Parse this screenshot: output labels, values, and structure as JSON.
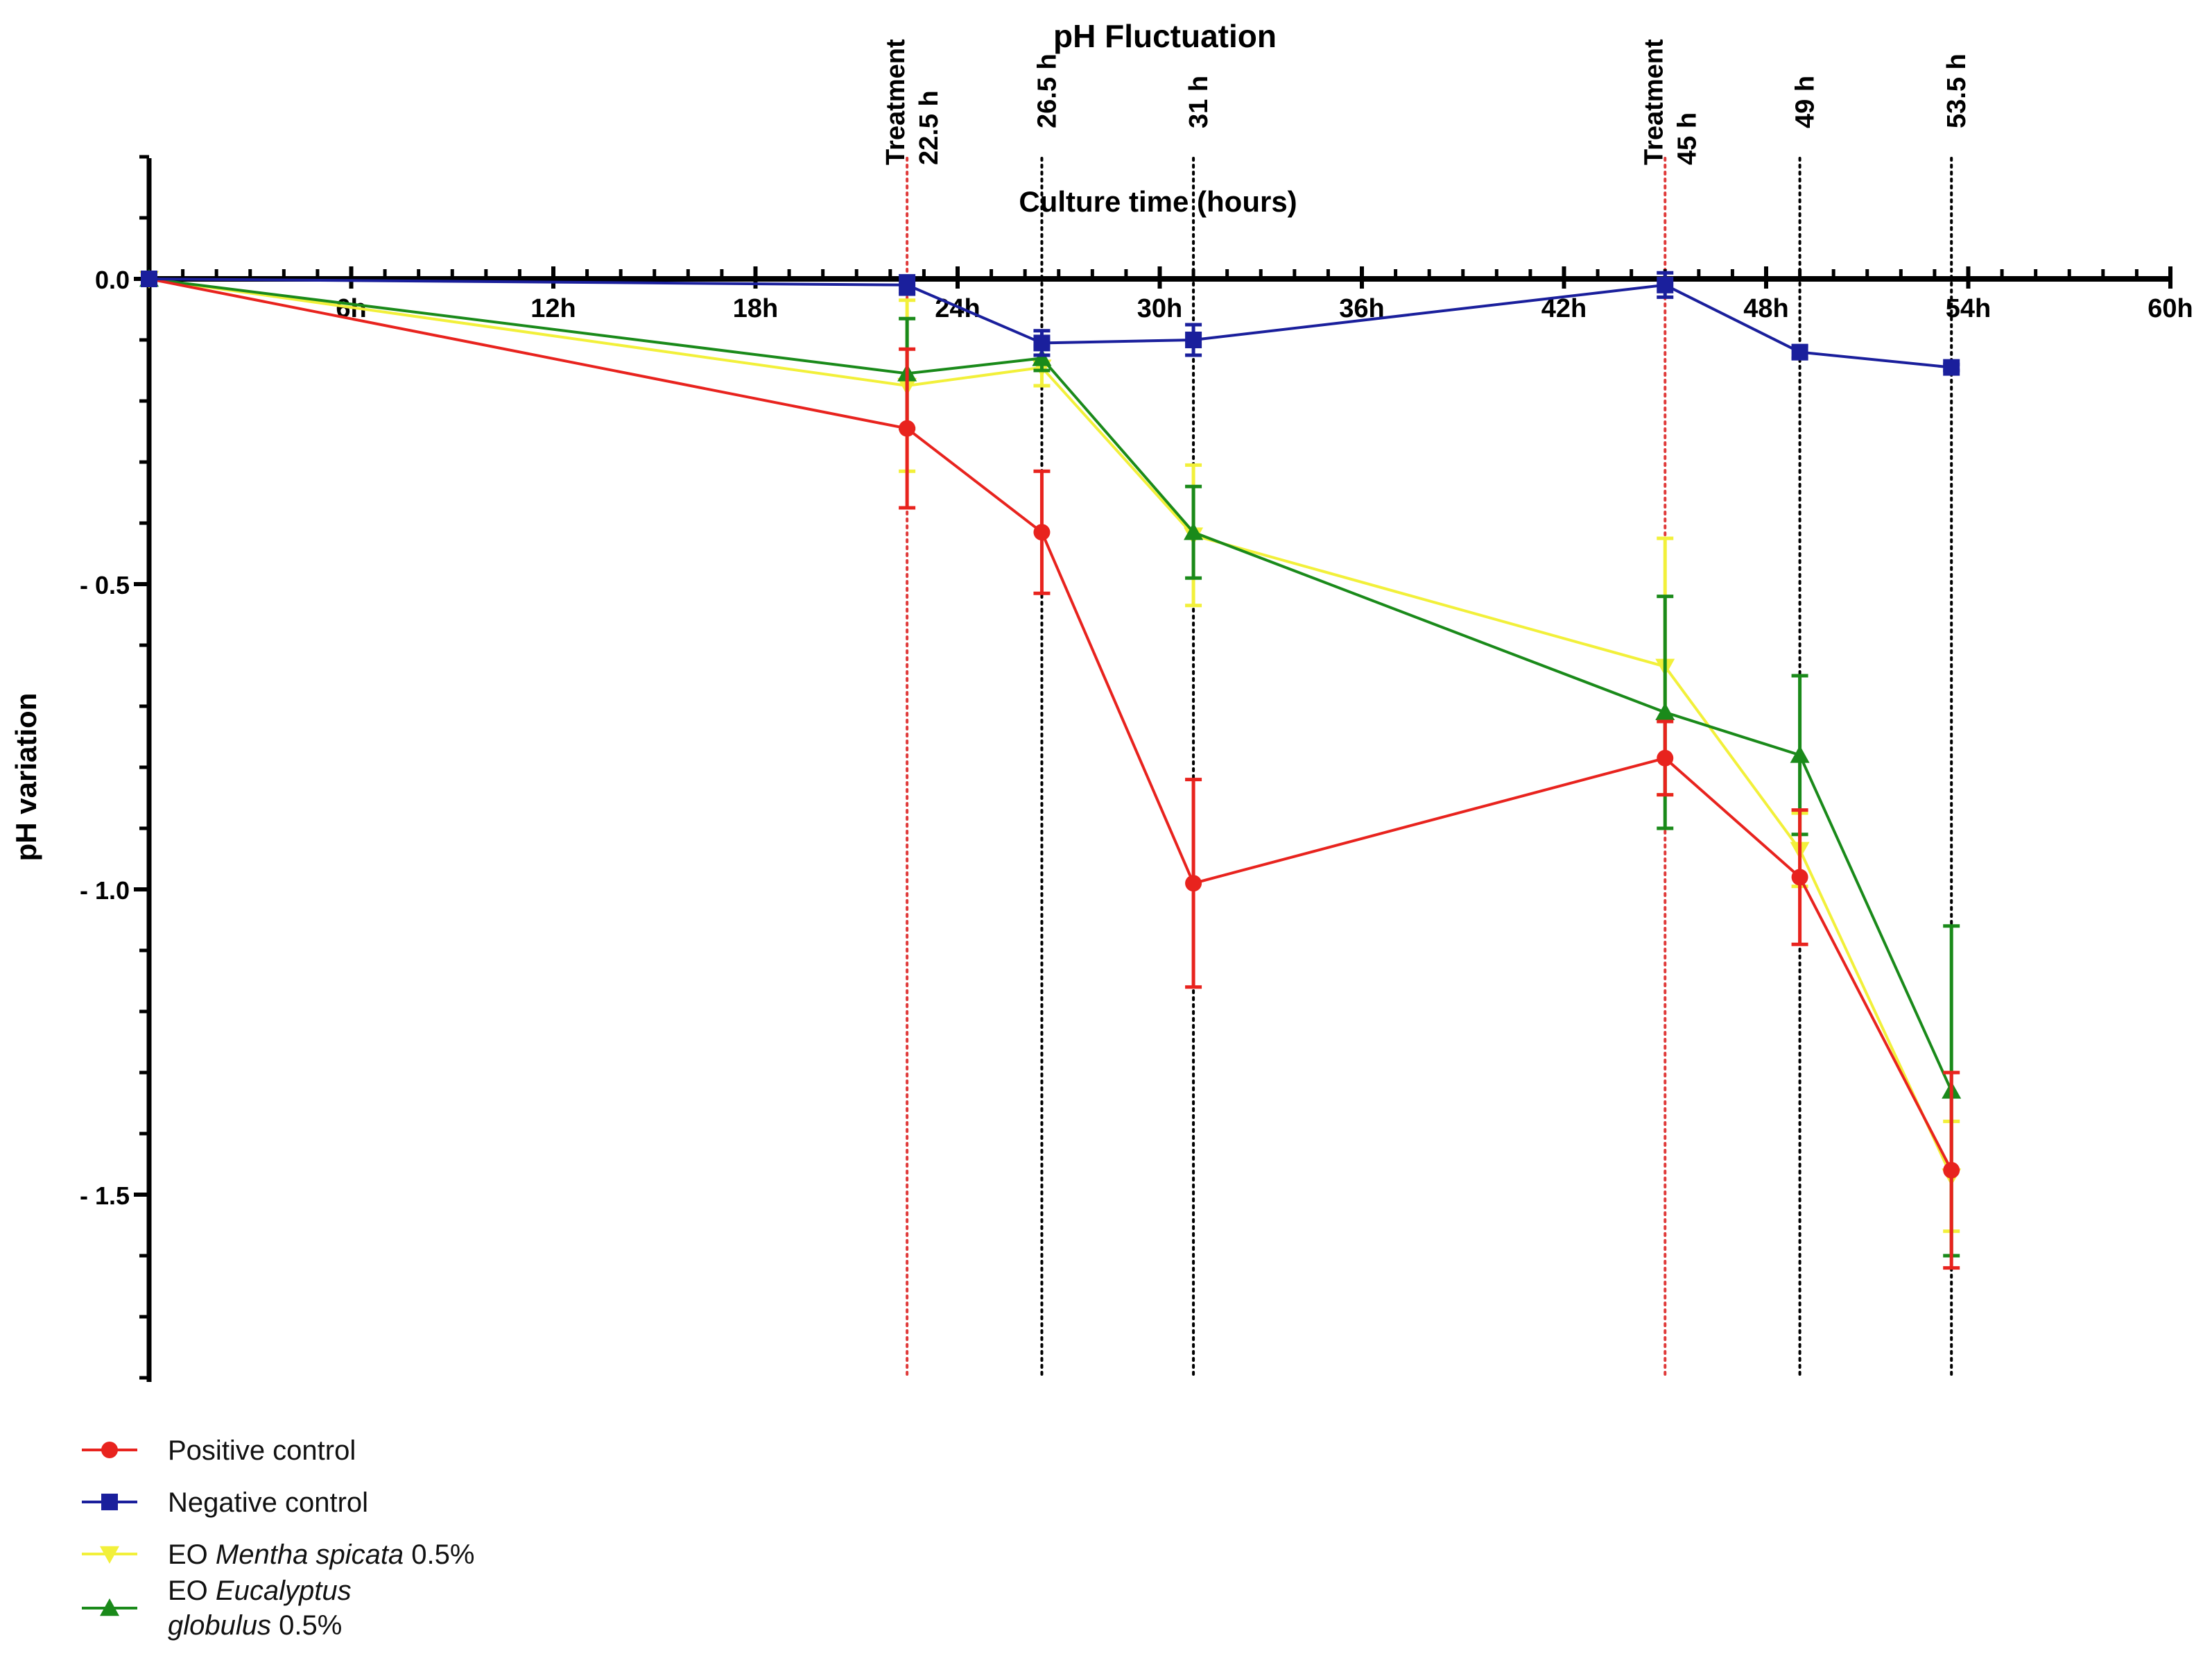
{
  "chart_data": {
    "type": "line",
    "title": "pH Fluctuation",
    "xlabel": "Culture time (hours)",
    "ylabel": "pH variation",
    "xlim": [
      0,
      60
    ],
    "ylim": [
      -1.8,
      0.2
    ],
    "x_ticks": [
      {
        "value": 6,
        "label": "6h"
      },
      {
        "value": 12,
        "label": "12h"
      },
      {
        "value": 18,
        "label": "18h"
      },
      {
        "value": 24,
        "label": "24h"
      },
      {
        "value": 30,
        "label": "30h"
      },
      {
        "value": 36,
        "label": "36h"
      },
      {
        "value": 42,
        "label": "42h"
      },
      {
        "value": 48,
        "label": "48h"
      },
      {
        "value": 54,
        "label": "54h"
      },
      {
        "value": 60,
        "label": "60h"
      }
    ],
    "y_ticks": [
      {
        "value": 0,
        "label": "0.0"
      },
      {
        "value": -0.5,
        "label": "- 0.5"
      },
      {
        "value": -1.0,
        "label": "- 1.0"
      },
      {
        "value": -1.5,
        "label": "- 1.5"
      }
    ],
    "reference_lines": [
      {
        "x": 22.5,
        "lines": [
          "Treatment",
          "22.5 h"
        ],
        "color": "#e03a3a"
      },
      {
        "x": 26.5,
        "lines": [
          "26.5 h"
        ],
        "color": "#000000"
      },
      {
        "x": 31,
        "lines": [
          "31 h"
        ],
        "color": "#000000"
      },
      {
        "x": 45,
        "lines": [
          "Treatment",
          "45 h"
        ],
        "color": "#e03a3a"
      },
      {
        "x": 49,
        "lines": [
          "49 h"
        ],
        "color": "#000000"
      },
      {
        "x": 53.5,
        "lines": [
          "53.5 h"
        ],
        "color": "#000000"
      }
    ],
    "x": [
      0,
      22.5,
      26.5,
      31,
      45,
      49,
      53.5
    ],
    "series": [
      {
        "name": "Positive control",
        "color": "#e8231e",
        "marker": "circle",
        "values": [
          0,
          -0.245,
          -0.415,
          -0.99,
          -0.785,
          -0.98,
          -1.46
        ],
        "errors": [
          0,
          0.13,
          0.1,
          0.17,
          0.06,
          0.11,
          0.16
        ]
      },
      {
        "name": "Negative control",
        "color": "#1a1f9c",
        "marker": "square",
        "values": [
          0,
          -0.01,
          -0.105,
          -0.1,
          -0.01,
          -0.12,
          -0.145
        ],
        "errors": [
          0,
          0.015,
          0.02,
          0.025,
          0.02,
          0.01,
          0.005
        ]
      },
      {
        "name": "EO Mentha spicata 0.5%",
        "name_parts": [
          "EO ",
          "Mentha spicata",
          " 0.5%"
        ],
        "color": "#f2f03a",
        "marker": "triangle-down",
        "values": [
          0,
          -0.175,
          -0.145,
          -0.42,
          -0.635,
          -0.935,
          -1.47
        ],
        "errors": [
          0,
          0.14,
          0.03,
          0.115,
          0.21,
          0.06,
          0.09
        ]
      },
      {
        "name": "EO Eucalyptus globulus 0.5%",
        "name_parts": [
          "EO ",
          "Eucalyptus",
          "globulus",
          " 0.5%"
        ],
        "color": "#1a8a1a",
        "marker": "triangle-up",
        "values": [
          0,
          -0.155,
          -0.13,
          -0.415,
          -0.71,
          -0.78,
          -1.33
        ],
        "errors": [
          0,
          0.09,
          0.02,
          0.075,
          0.19,
          0.13,
          0.27
        ]
      }
    ]
  }
}
